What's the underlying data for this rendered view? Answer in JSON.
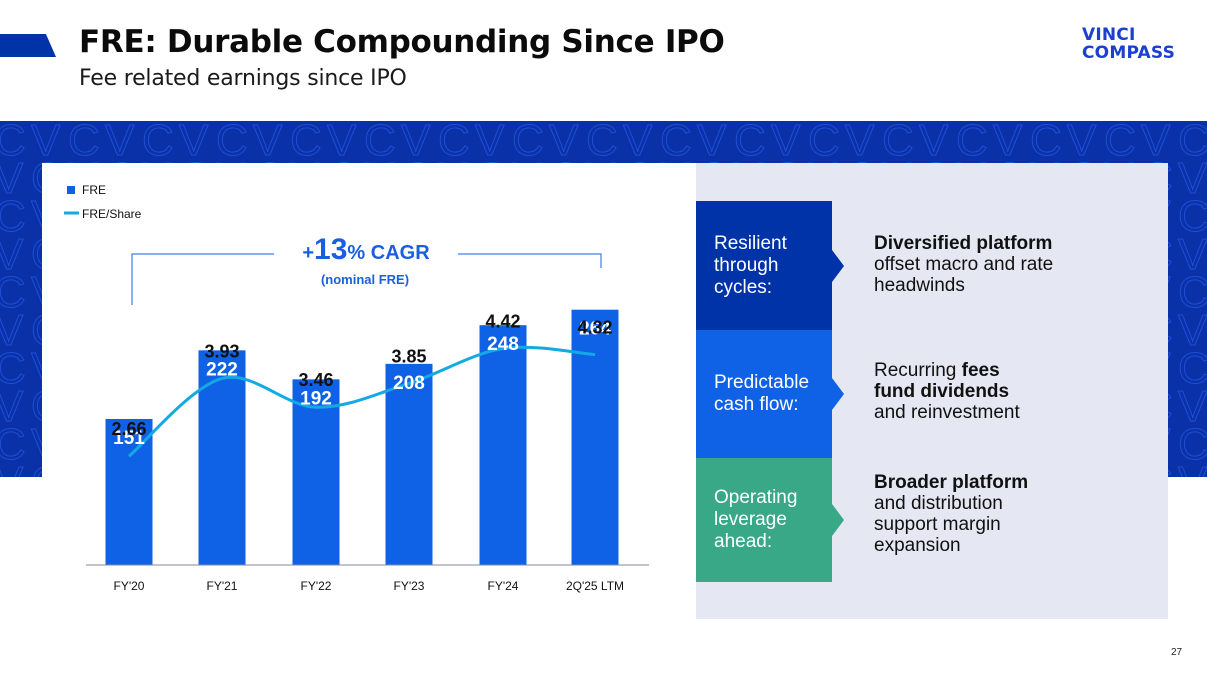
{
  "header": {
    "title": "FRE: Durable Compounding Since IPO",
    "subtitle": "Fee related earnings since IPO",
    "logo_line1": "VINCI",
    "logo_line2": "COMPASS"
  },
  "colors": {
    "brand_navy": "#0a31a8",
    "bar_blue": "#0f62e6",
    "line_cyan": "#14a9e3",
    "pillar_1": "#0033a8",
    "pillar_2": "#0f62e6",
    "pillar_3": "#38a886",
    "panel_bg": "#e5e8f3",
    "cagr_blue": "#1a5fe0"
  },
  "chart_data": {
    "type": "bar",
    "title": "",
    "xlabel": "",
    "ylabel": "",
    "categories": [
      "FY'20",
      "FY'21",
      "FY'22",
      "FY'23",
      "FY'24",
      "2Q'25 LTM"
    ],
    "series": [
      {
        "name": "FRE",
        "type": "bar",
        "values": [
          151,
          222,
          192,
          208,
          248,
          264
        ]
      },
      {
        "name": "FRE/Share",
        "type": "line",
        "values": [
          2.66,
          3.93,
          3.46,
          3.85,
          4.42,
          4.32
        ]
      }
    ],
    "bar_labels": [
      "151",
      "222",
      "192",
      "208",
      "248",
      "264"
    ],
    "line_labels": [
      "2.66",
      "3.93",
      "3.46",
      "3.85",
      "4.42",
      "4.32"
    ],
    "legend": [
      {
        "label": "FRE",
        "marker": "square"
      },
      {
        "label": "FRE/Share",
        "marker": "line"
      }
    ],
    "legend_position": "top-left",
    "grid": false,
    "annotation": {
      "plus": "+",
      "number": "13",
      "suffix": "% CAGR",
      "note": "(nominal FRE)",
      "from": "FY'20",
      "to": "2Q'25 LTM"
    }
  },
  "pillars": [
    {
      "label": "Resilient through cycles:",
      "lines": [
        "Resilient",
        "through",
        "cycles:"
      ],
      "desc": [
        {
          "bold": "Diversified platform",
          "normal": ""
        },
        {
          "bold": "",
          "normal": "offset macro and rate"
        },
        {
          "bold": "",
          "normal": "headwinds"
        }
      ]
    },
    {
      "label": "Predictable cash flow:",
      "lines": [
        "Predictable",
        "cash flow:"
      ],
      "desc": [
        {
          "bold": "",
          "normal": "Recurring ",
          "bold_after": "fees"
        },
        {
          "bold": "fund dividends",
          "normal": ""
        },
        {
          "bold": "",
          "normal": "and reinvestment"
        }
      ]
    },
    {
      "label": "Operating leverage ahead:",
      "lines": [
        "Operating",
        "leverage",
        "ahead:"
      ],
      "desc": [
        {
          "bold": "Broader platform",
          "normal": ""
        },
        {
          "bold": "",
          "normal": "and distribution"
        },
        {
          "bold": "",
          "normal": "support margin"
        },
        {
          "bold": "",
          "normal": "expansion"
        }
      ]
    }
  ],
  "footer": {
    "page_number": "27"
  }
}
